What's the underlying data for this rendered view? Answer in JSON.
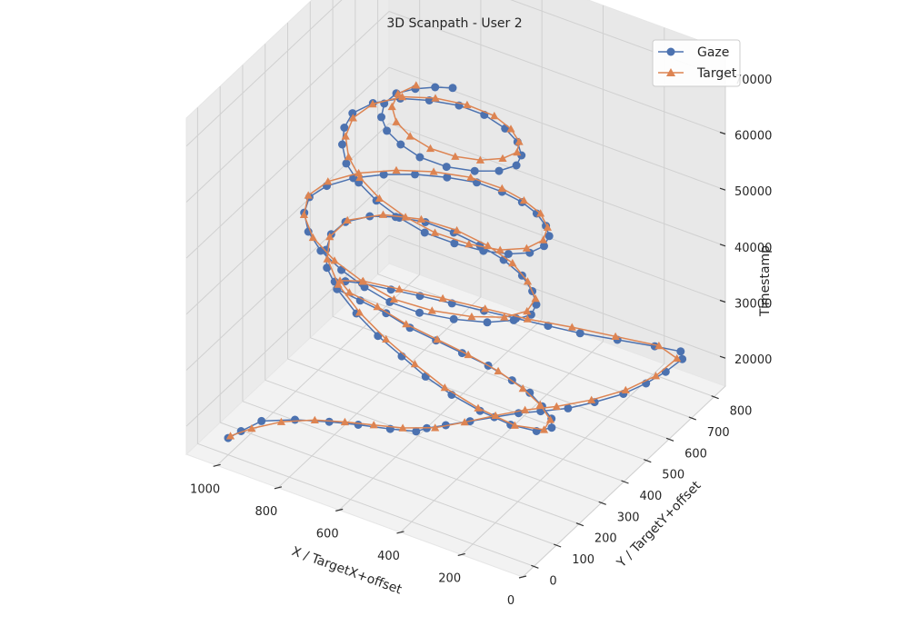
{
  "chart_data": {
    "type": "scatter",
    "projection": "3d",
    "title": "3D Scanpath - User 2",
    "xlabel": "X / TargetX+offset",
    "ylabel": "Y / TargetY+offset",
    "zlabel": "Timestamp",
    "xlim": [
      0,
      1100
    ],
    "ylim": [
      -50,
      850
    ],
    "zlim": [
      15000,
      75000
    ],
    "xticks": [
      "0",
      "200",
      "400",
      "600",
      "800",
      "1000"
    ],
    "yticks": [
      "0",
      "100",
      "200",
      "300",
      "400",
      "500",
      "600",
      "700",
      "800"
    ],
    "zticks": [
      "20000",
      "30000",
      "40000",
      "50000",
      "60000",
      "70000"
    ],
    "grid": true,
    "legend_position": "top-right",
    "series": [
      {
        "name": "Gaze",
        "color": "#4c72b0",
        "marker": "circle",
        "points": [
          [
            1000,
            0,
            18000
          ],
          [
            980,
            30,
            18500
          ],
          [
            950,
            80,
            19000
          ],
          [
            870,
            120,
            19300
          ],
          [
            780,
            150,
            19600
          ],
          [
            700,
            170,
            19900
          ],
          [
            610,
            190,
            20200
          ],
          [
            540,
            210,
            20400
          ],
          [
            520,
            230,
            20600
          ],
          [
            480,
            260,
            20800
          ],
          [
            430,
            300,
            21000
          ],
          [
            380,
            340,
            21200
          ],
          [
            330,
            380,
            21400
          ],
          [
            280,
            410,
            21600
          ],
          [
            220,
            450,
            21800
          ],
          [
            170,
            500,
            22000
          ],
          [
            120,
            560,
            22200
          ],
          [
            90,
            620,
            22400
          ],
          [
            70,
            680,
            22600
          ],
          [
            60,
            740,
            22800
          ],
          [
            80,
            760,
            23000
          ],
          [
            150,
            740,
            23300
          ],
          [
            250,
            710,
            23600
          ],
          [
            350,
            680,
            23900
          ],
          [
            440,
            660,
            24200
          ],
          [
            530,
            640,
            24500
          ],
          [
            620,
            620,
            24800
          ],
          [
            710,
            600,
            25100
          ],
          [
            800,
            580,
            25400
          ],
          [
            880,
            560,
            25700
          ],
          [
            960,
            540,
            26000
          ],
          [
            1000,
            520,
            26300
          ],
          [
            1020,
            500,
            26600
          ],
          [
            990,
            470,
            27000
          ],
          [
            900,
            450,
            27500
          ],
          [
            800,
            430,
            28000
          ],
          [
            700,
            400,
            28500
          ],
          [
            600,
            380,
            29000
          ],
          [
            500,
            360,
            29500
          ],
          [
            400,
            340,
            30000
          ],
          [
            300,
            310,
            30500
          ],
          [
            220,
            280,
            31000
          ],
          [
            150,
            240,
            31500
          ],
          [
            90,
            200,
            32000
          ],
          [
            60,
            160,
            32500
          ],
          [
            80,
            120,
            33000
          ],
          [
            150,
            100,
            33500
          ],
          [
            250,
            100,
            34000
          ],
          [
            350,
            110,
            34500
          ],
          [
            450,
            130,
            35000
          ],
          [
            550,
            160,
            35500
          ],
          [
            650,
            190,
            36000
          ],
          [
            750,
            230,
            36500
          ],
          [
            850,
            280,
            37000
          ],
          [
            920,
            330,
            37500
          ],
          [
            960,
            380,
            38000
          ],
          [
            980,
            430,
            38500
          ],
          [
            970,
            480,
            39000
          ],
          [
            920,
            520,
            39500
          ],
          [
            850,
            540,
            40000
          ],
          [
            760,
            550,
            40500
          ],
          [
            660,
            540,
            41000
          ],
          [
            560,
            520,
            41500
          ],
          [
            460,
            490,
            42000
          ],
          [
            370,
            450,
            42500
          ],
          [
            300,
            400,
            43000
          ],
          [
            250,
            350,
            43500
          ],
          [
            230,
            300,
            44000
          ],
          [
            250,
            250,
            44500
          ],
          [
            300,
            200,
            45000
          ],
          [
            380,
            160,
            45500
          ],
          [
            470,
            130,
            46000
          ],
          [
            560,
            120,
            46500
          ],
          [
            650,
            130,
            47000
          ],
          [
            740,
            150,
            47500
          ],
          [
            830,
            180,
            48000
          ],
          [
            900,
            220,
            48500
          ],
          [
            950,
            270,
            49000
          ],
          [
            970,
            320,
            49500
          ],
          [
            950,
            370,
            50000
          ],
          [
            900,
            420,
            50500
          ],
          [
            830,
            460,
            51000
          ],
          [
            750,
            490,
            51500
          ],
          [
            660,
            510,
            52000
          ],
          [
            570,
            520,
            52500
          ],
          [
            480,
            510,
            53000
          ],
          [
            400,
            490,
            53500
          ],
          [
            330,
            460,
            54000
          ],
          [
            270,
            420,
            54500
          ],
          [
            230,
            380,
            55000
          ],
          [
            210,
            330,
            55500
          ],
          [
            220,
            280,
            56000
          ],
          [
            260,
            240,
            56500
          ],
          [
            320,
            210,
            57000
          ],
          [
            400,
            190,
            57500
          ],
          [
            490,
            180,
            58000
          ],
          [
            580,
            190,
            58500
          ],
          [
            670,
            210,
            59000
          ],
          [
            750,
            240,
            59500
          ],
          [
            820,
            280,
            60000
          ],
          [
            870,
            330,
            60500
          ],
          [
            900,
            380,
            61000
          ],
          [
            910,
            430,
            61500
          ],
          [
            880,
            480,
            62000
          ],
          [
            820,
            520,
            62500
          ],
          [
            740,
            540,
            63000
          ],
          [
            650,
            550,
            63500
          ],
          [
            560,
            540,
            64000
          ],
          [
            470,
            510,
            64500
          ],
          [
            400,
            470,
            65000
          ],
          [
            350,
            420,
            65500
          ],
          [
            330,
            370,
            66000
          ],
          [
            350,
            320,
            66500
          ],
          [
            400,
            280,
            67000
          ],
          [
            470,
            250,
            67500
          ],
          [
            550,
            240,
            68000
          ],
          [
            620,
            250,
            68500
          ],
          [
            680,
            270,
            69000
          ],
          [
            720,
            300,
            69500
          ],
          [
            740,
            340,
            70000
          ],
          [
            730,
            380,
            70500
          ],
          [
            690,
            410,
            71000
          ],
          [
            640,
            430,
            71500
          ],
          [
            590,
            440,
            72000
          ]
        ]
      },
      {
        "name": "Target",
        "color": "#dd8452",
        "marker": "triangle",
        "points": [
          [
            1000,
            10,
            18000
          ],
          [
            960,
            50,
            18600
          ],
          [
            900,
            100,
            19100
          ],
          [
            820,
            140,
            19500
          ],
          [
            740,
            165,
            19800
          ],
          [
            660,
            185,
            20100
          ],
          [
            580,
            205,
            20400
          ],
          [
            500,
            240,
            20700
          ],
          [
            440,
            290,
            21000
          ],
          [
            380,
            345,
            21300
          ],
          [
            320,
            395,
            21600
          ],
          [
            250,
            440,
            21900
          ],
          [
            180,
            500,
            22200
          ],
          [
            120,
            570,
            22500
          ],
          [
            80,
            650,
            22800
          ],
          [
            70,
            730,
            23100
          ],
          [
            140,
            745,
            23400
          ],
          [
            260,
            715,
            23800
          ],
          [
            380,
            685,
            24200
          ],
          [
            500,
            650,
            24600
          ],
          [
            620,
            625,
            25000
          ],
          [
            740,
            600,
            25400
          ],
          [
            860,
            570,
            25800
          ],
          [
            960,
            545,
            26200
          ],
          [
            1010,
            510,
            26600
          ],
          [
            950,
            470,
            27200
          ],
          [
            840,
            445,
            27800
          ],
          [
            720,
            410,
            28400
          ],
          [
            600,
            385,
            29000
          ],
          [
            480,
            360,
            29600
          ],
          [
            360,
            330,
            30200
          ],
          [
            250,
            290,
            30800
          ],
          [
            160,
            245,
            31400
          ],
          [
            90,
            195,
            32000
          ],
          [
            70,
            140,
            32700
          ],
          [
            140,
            105,
            33400
          ],
          [
            260,
            105,
            34100
          ],
          [
            380,
            120,
            34800
          ],
          [
            500,
            150,
            35500
          ],
          [
            620,
            185,
            36200
          ],
          [
            740,
            230,
            36900
          ],
          [
            850,
            285,
            37600
          ],
          [
            930,
            345,
            38300
          ],
          [
            970,
            410,
            39000
          ],
          [
            960,
            475,
            39700
          ],
          [
            880,
            525,
            40400
          ],
          [
            770,
            545,
            41000
          ],
          [
            650,
            540,
            41600
          ],
          [
            530,
            515,
            42200
          ],
          [
            420,
            475,
            42800
          ],
          [
            330,
            420,
            43400
          ],
          [
            260,
            360,
            44000
          ],
          [
            240,
            295,
            44600
          ],
          [
            270,
            235,
            45200
          ],
          [
            340,
            185,
            45800
          ],
          [
            440,
            145,
            46400
          ],
          [
            550,
            125,
            47000
          ],
          [
            660,
            135,
            47600
          ],
          [
            770,
            160,
            48200
          ],
          [
            870,
            200,
            48800
          ],
          [
            940,
            255,
            49400
          ],
          [
            970,
            315,
            50000
          ],
          [
            950,
            375,
            50600
          ],
          [
            890,
            430,
            51200
          ],
          [
            800,
            475,
            51800
          ],
          [
            700,
            505,
            52400
          ],
          [
            590,
            520,
            53000
          ],
          [
            480,
            510,
            53600
          ],
          [
            390,
            485,
            54200
          ],
          [
            310,
            450,
            54800
          ],
          [
            250,
            400,
            55400
          ],
          [
            220,
            340,
            56000
          ],
          [
            230,
            280,
            56600
          ],
          [
            280,
            230,
            57200
          ],
          [
            360,
            200,
            57800
          ],
          [
            460,
            185,
            58400
          ],
          [
            560,
            190,
            59000
          ],
          [
            660,
            210,
            59600
          ],
          [
            750,
            245,
            60200
          ],
          [
            820,
            290,
            60800
          ],
          [
            870,
            345,
            61400
          ],
          [
            890,
            405,
            62000
          ],
          [
            870,
            465,
            62600
          ],
          [
            810,
            515,
            63200
          ],
          [
            720,
            540,
            63800
          ],
          [
            620,
            545,
            64400
          ],
          [
            520,
            530,
            65000
          ],
          [
            440,
            495,
            65600
          ],
          [
            380,
            450,
            66200
          ],
          [
            350,
            400,
            66800
          ],
          [
            360,
            350,
            67400
          ],
          [
            400,
            305,
            68000
          ],
          [
            460,
            275,
            68600
          ],
          [
            530,
            260,
            69200
          ],
          [
            600,
            265,
            69800
          ],
          [
            660,
            285,
            70400
          ],
          [
            700,
            320,
            71000
          ],
          [
            710,
            360,
            71600
          ],
          [
            680,
            400,
            72200
          ]
        ]
      }
    ]
  }
}
